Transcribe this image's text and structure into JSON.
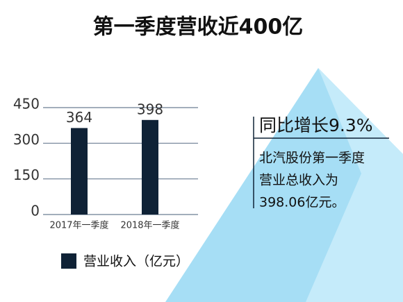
{
  "chart_data": {
    "type": "bar",
    "title": "第一季度营收近400亿",
    "categories": [
      "2017年一季度",
      "2018年一季度"
    ],
    "series": [
      {
        "name": "营业收入（亿元）",
        "color": "#0f2236",
        "values": [
          364,
          398
        ]
      }
    ],
    "ylim": [
      0,
      450
    ],
    "yticks": [
      0,
      150,
      300,
      450
    ],
    "grid": true,
    "legend": "bottom-left",
    "annotation": {
      "headline": "同比增长9.3%",
      "lines": [
        "北汽股份第一季度",
        "营业总收入为",
        "398.06亿元。"
      ]
    }
  }
}
